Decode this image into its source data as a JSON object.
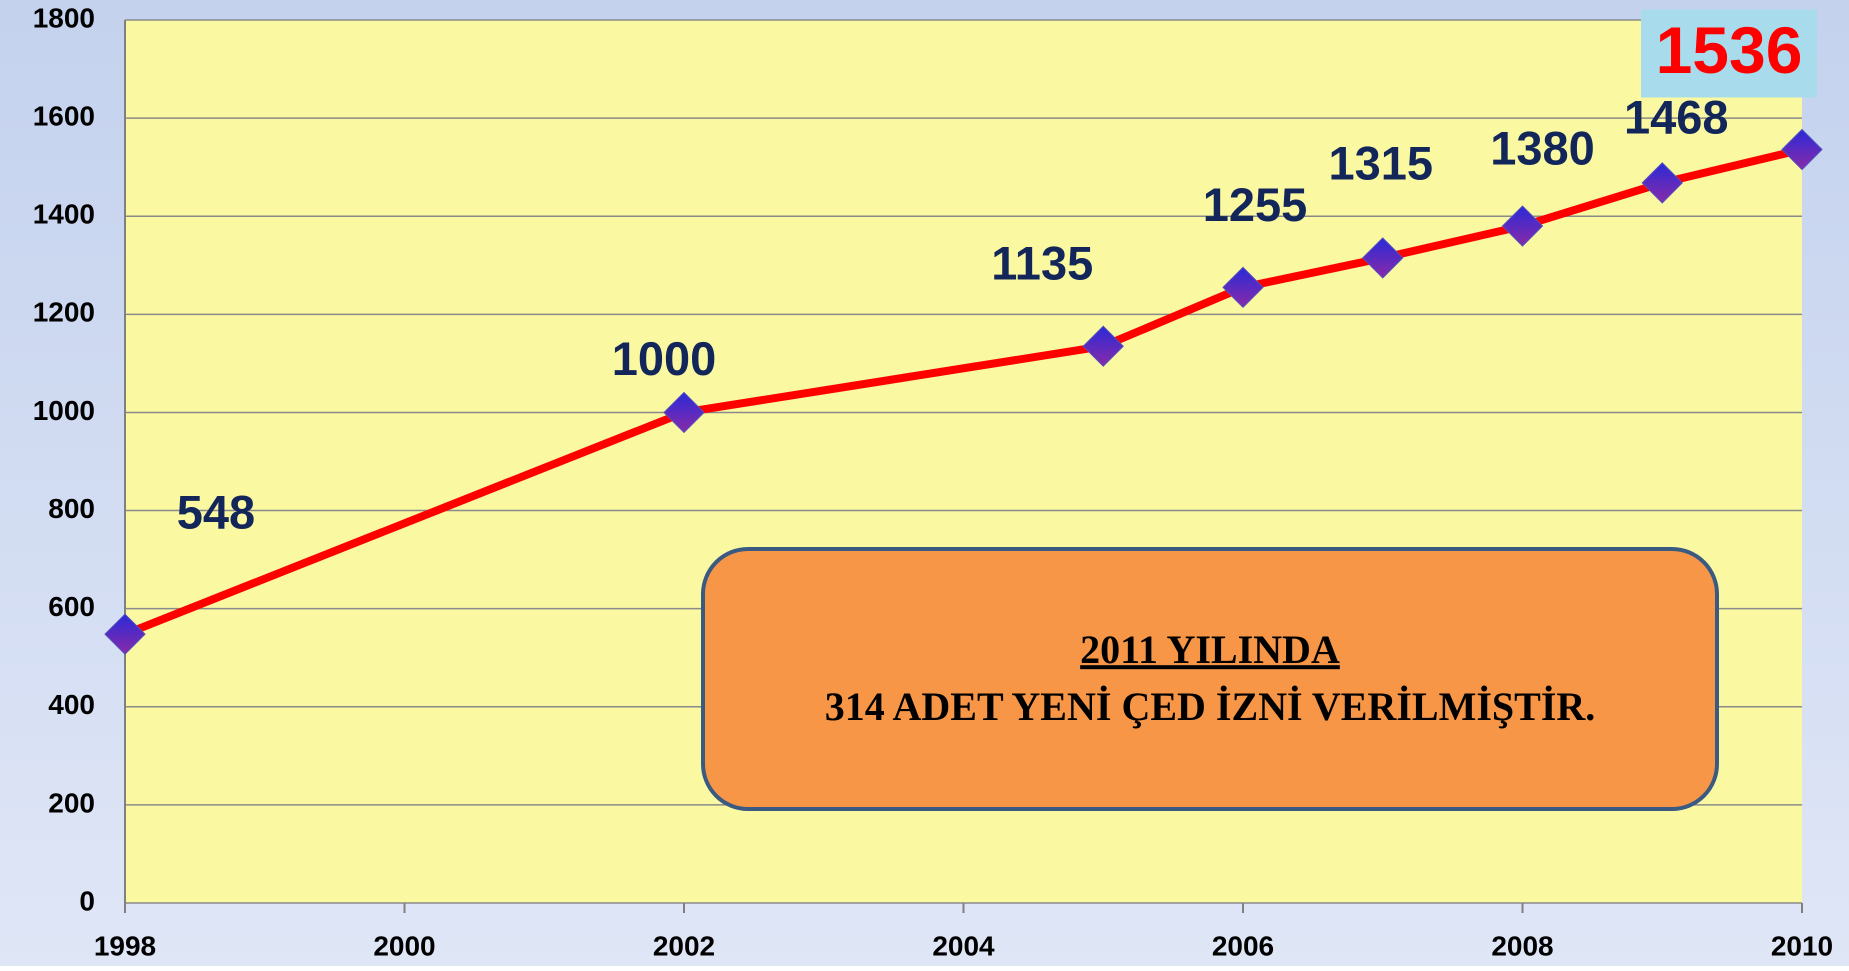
{
  "chart_data": {
    "type": "line",
    "x": [
      1998,
      2002,
      2005,
      2006,
      2007,
      2008,
      2009,
      2010
    ],
    "series": [
      {
        "color": "#ff0000",
        "values": [
          548,
          1000,
          1135,
          1255,
          1315,
          1380,
          1468,
          1536
        ]
      }
    ],
    "xlim": [
      1998,
      2010
    ],
    "xticks": [
      1998,
      2000,
      2002,
      2004,
      2006,
      2008,
      2010
    ],
    "ylim": [
      0,
      1800
    ],
    "yticks": [
      0,
      200,
      400,
      600,
      800,
      1000,
      1200,
      1400,
      1600,
      1800
    ],
    "grid": true,
    "annotation": {
      "title": "2011 YILINDA",
      "text": "314 ADET YENİ ÇED İZNİ VERİLMİŞTİR."
    }
  }
}
